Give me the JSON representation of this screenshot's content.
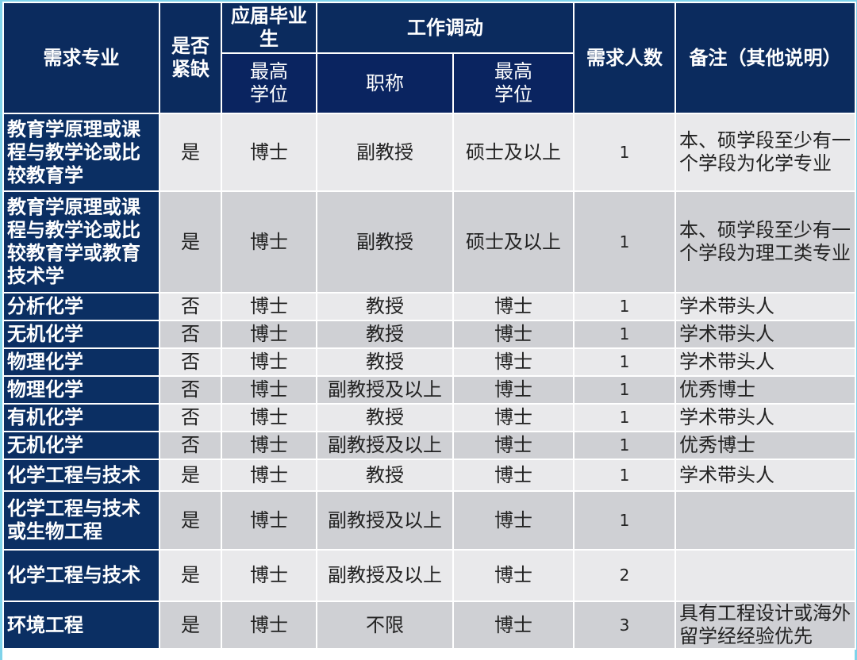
{
  "header": {
    "major": "需求专业",
    "shortage": "是否紧缺",
    "graduate": "应届毕业生",
    "transfer": "工作调动",
    "count": "需求人数",
    "note": "备注（其他说明）",
    "grad_degree": "最高学位",
    "title": "职称",
    "transfer_degree": "最高学位"
  },
  "rows": [
    {
      "major": "教育学原理或课程与教学论或比较教育学",
      "shortage": "是",
      "grad_degree": "博士",
      "title": "副教授",
      "transfer_degree": "硕士及以上",
      "count": "1",
      "note": "本、硕学段至少有一个学段为化学专业"
    },
    {
      "major": "教育学原理或课程与教学论或比较教育学或教育技术学",
      "shortage": "是",
      "grad_degree": "博士",
      "title": "副教授",
      "transfer_degree": "硕士及以上",
      "count": "1",
      "note": "本、硕学段至少有一个学段为理工类专业"
    },
    {
      "major": "分析化学",
      "shortage": "否",
      "grad_degree": "博士",
      "title": "教授",
      "transfer_degree": "博士",
      "count": "1",
      "note": "学术带头人"
    },
    {
      "major": "无机化学",
      "shortage": "否",
      "grad_degree": "博士",
      "title": "教授",
      "transfer_degree": "博士",
      "count": "1",
      "note": "学术带头人"
    },
    {
      "major": "物理化学",
      "shortage": "否",
      "grad_degree": "博士",
      "title": "教授",
      "transfer_degree": "博士",
      "count": "1",
      "note": "学术带头人"
    },
    {
      "major": "物理化学",
      "shortage": "否",
      "grad_degree": "博士",
      "title": "副教授及以上",
      "transfer_degree": "博士",
      "count": "1",
      "note": "优秀博士"
    },
    {
      "major": "有机化学",
      "shortage": "否",
      "grad_degree": "博士",
      "title": "教授",
      "transfer_degree": "博士",
      "count": "1",
      "note": "学术带头人"
    },
    {
      "major": "无机化学",
      "shortage": "否",
      "grad_degree": "博士",
      "title": "副教授及以上",
      "transfer_degree": "博士",
      "count": "1",
      "note": "优秀博士"
    },
    {
      "major": "化学工程与技术",
      "shortage": "是",
      "grad_degree": "博士",
      "title": "教授",
      "transfer_degree": "博士",
      "count": "1",
      "note": "学术带头人"
    },
    {
      "major": "化学工程与技术或生物工程",
      "shortage": "是",
      "grad_degree": "博士",
      "title": "副教授及以上",
      "transfer_degree": "博士",
      "count": "1",
      "note": ""
    },
    {
      "major": "化学工程与技术",
      "shortage": "是",
      "grad_degree": "博士",
      "title": "副教授及以上",
      "transfer_degree": "博士",
      "count": "2",
      "note": ""
    },
    {
      "major": "环境工程",
      "shortage": "是",
      "grad_degree": "博士",
      "title": "不限",
      "transfer_degree": "博士",
      "count": "3",
      "note": "具有工程设计或海外留学经经验优先"
    }
  ],
  "colors": {
    "header_bg": "#0b2b5e",
    "row_light": "#e9e9eb",
    "row_dark": "#cfd0d4",
    "frame": "#7fd3ea"
  }
}
